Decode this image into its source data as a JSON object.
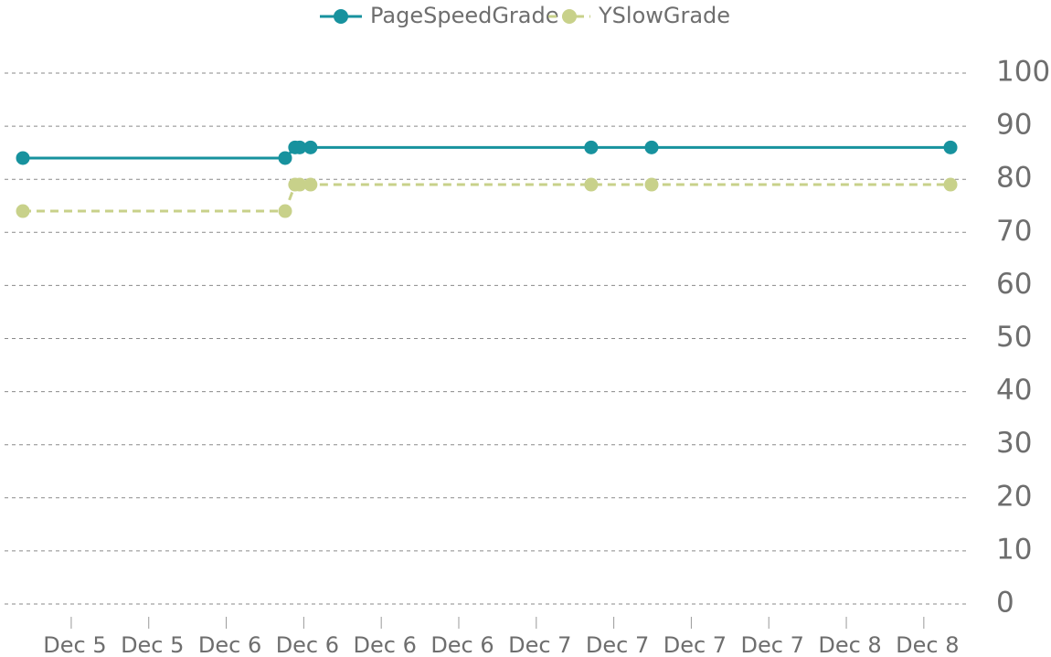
{
  "chart_data": {
    "type": "line",
    "x": [
      5.344,
      6.19,
      6.222,
      6.237,
      6.272,
      7.177,
      7.372,
      8.336
    ],
    "series": [
      {
        "name": "PageSpeedGrade",
        "color": "#17929e",
        "dashed": false,
        "values": [
          84,
          84,
          86,
          86,
          86,
          86,
          86,
          86
        ]
      },
      {
        "name": "YSlowGrade",
        "color": "#c8d18a",
        "dashed": true,
        "values": [
          74,
          74,
          79,
          79,
          79,
          79,
          79,
          79
        ]
      }
    ],
    "xlim": [
      5.285,
      8.389
    ],
    "xticks": [
      {
        "value": 5.5,
        "label": "Dec 5"
      },
      {
        "value": 5.75,
        "label": "Dec 5"
      },
      {
        "value": 6.0,
        "label": "Dec 6"
      },
      {
        "value": 6.25,
        "label": "Dec 6"
      },
      {
        "value": 6.5,
        "label": "Dec 6"
      },
      {
        "value": 6.75,
        "label": "Dec 6"
      },
      {
        "value": 7.0,
        "label": "Dec 7"
      },
      {
        "value": 7.25,
        "label": "Dec 7"
      },
      {
        "value": 7.5,
        "label": "Dec 7"
      },
      {
        "value": 7.75,
        "label": "Dec 7"
      },
      {
        "value": 8.0,
        "label": "Dec 8"
      },
      {
        "value": 8.25,
        "label": "Dec 8"
      }
    ],
    "ylim": [
      0,
      100
    ],
    "yticks": [
      0,
      10,
      20,
      30,
      40,
      50,
      60,
      70,
      80,
      90,
      100
    ],
    "grid": true,
    "legend": "top"
  }
}
